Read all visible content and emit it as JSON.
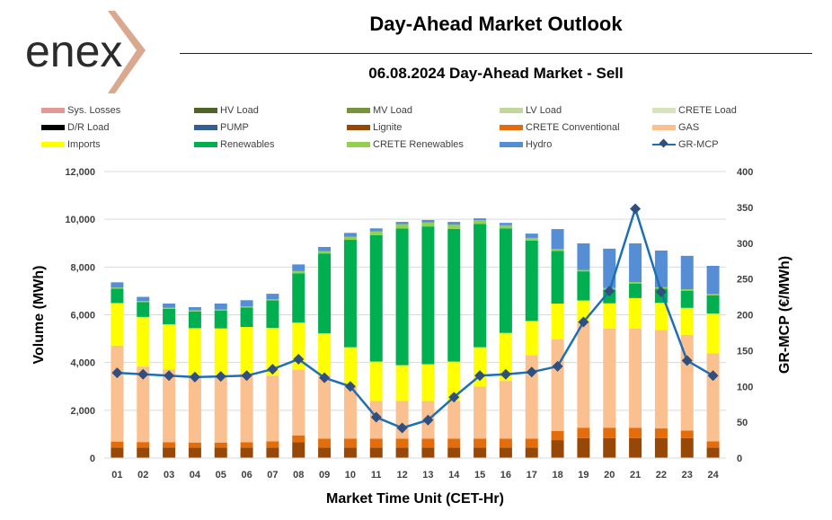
{
  "header": {
    "logo_text": "enex",
    "title": "Day-Ahead Market Outlook",
    "subtitle": "06.08.2024  Day-Ahead Market - Sell"
  },
  "colors": {
    "Sys. Losses": "#e39a96",
    "HV Load": "#4f6228",
    "MV Load": "#77933c",
    "LV Load": "#c3d69b",
    "CRETE Load": "#d7e4bd",
    "D/R Load": "#000000",
    "PUMP": "#365f91",
    "Lignite": "#974806",
    "CRETE Conventional": "#e46c0a",
    "GAS": "#fac090",
    "Imports": "#ffff00",
    "Renewables": "#00b050",
    "CRETE Renewables": "#92d050",
    "Hydro": "#558ed5",
    "GR-MCP": "#1f6fb5",
    "GR-MCP-marker": "#2f4f7f",
    "gridline": "#d9d9d9"
  },
  "chart_data": {
    "type": "bar",
    "stacked": true,
    "title": "06.08.2024  Day-Ahead Market - Sell",
    "xlabel": "Market Time Unit (CET-Hr)",
    "ylabel": "Volume (MWh)",
    "y2label": "GR-MCP (€/MWh)",
    "ylim": [
      0,
      12000
    ],
    "y2lim": [
      0,
      400
    ],
    "yticks": [
      "0",
      "2,000",
      "4,000",
      "6,000",
      "8,000",
      "10,000",
      "12,000"
    ],
    "y2ticks": [
      "0",
      "50",
      "100",
      "150",
      "200",
      "250",
      "300",
      "350",
      "400"
    ],
    "grid": true,
    "legend_position": "top",
    "categories": [
      "01",
      "02",
      "03",
      "04",
      "05",
      "06",
      "07",
      "08",
      "09",
      "10",
      "11",
      "12",
      "13",
      "14",
      "15",
      "16",
      "17",
      "18",
      "19",
      "20",
      "21",
      "22",
      "23",
      "24"
    ],
    "legend": [
      "Sys. Losses",
      "HV Load",
      "MV Load",
      "LV Load",
      "CRETE Load",
      "D/R Load",
      "PUMP",
      "Lignite",
      "CRETE Conventional",
      "GAS",
      "Imports",
      "Renewables",
      "CRETE Renewables",
      "Hydro",
      "GR-MCP"
    ],
    "series": [
      {
        "name": "Sys. Losses",
        "values": [
          0,
          0,
          0,
          0,
          0,
          0,
          0,
          0,
          0,
          0,
          0,
          0,
          0,
          0,
          0,
          0,
          0,
          0,
          0,
          0,
          0,
          0,
          0,
          0
        ]
      },
      {
        "name": "HV Load",
        "values": [
          0,
          0,
          0,
          0,
          0,
          0,
          0,
          0,
          0,
          0,
          0,
          0,
          0,
          0,
          0,
          0,
          0,
          0,
          0,
          0,
          0,
          0,
          0,
          0
        ]
      },
      {
        "name": "MV Load",
        "values": [
          0,
          0,
          0,
          0,
          0,
          0,
          0,
          0,
          0,
          0,
          0,
          0,
          0,
          0,
          0,
          0,
          0,
          0,
          0,
          0,
          0,
          0,
          0,
          0
        ]
      },
      {
        "name": "LV Load",
        "values": [
          0,
          0,
          0,
          0,
          0,
          0,
          0,
          0,
          0,
          0,
          0,
          0,
          0,
          0,
          0,
          0,
          0,
          0,
          0,
          0,
          0,
          0,
          0,
          0
        ]
      },
      {
        "name": "CRETE Load",
        "values": [
          0,
          0,
          0,
          0,
          0,
          0,
          0,
          0,
          0,
          0,
          0,
          0,
          0,
          0,
          0,
          0,
          0,
          0,
          0,
          0,
          0,
          0,
          0,
          0
        ]
      },
      {
        "name": "D/R Load",
        "values": [
          0,
          0,
          0,
          0,
          0,
          0,
          0,
          0,
          0,
          0,
          0,
          0,
          0,
          0,
          0,
          0,
          0,
          0,
          0,
          0,
          0,
          0,
          0,
          0
        ]
      },
      {
        "name": "PUMP",
        "values": [
          0,
          0,
          0,
          0,
          0,
          0,
          0,
          0,
          0,
          0,
          0,
          0,
          0,
          0,
          0,
          0,
          0,
          0,
          0,
          0,
          0,
          0,
          0,
          0
        ]
      },
      {
        "name": "Lignite",
        "values": [
          440,
          440,
          440,
          440,
          440,
          440,
          440,
          660,
          440,
          440,
          440,
          440,
          440,
          440,
          440,
          440,
          440,
          750,
          830,
          830,
          830,
          830,
          830,
          440
        ]
      },
      {
        "name": "CRETE Conventional",
        "values": [
          250,
          230,
          220,
          210,
          210,
          220,
          260,
          290,
          370,
          370,
          370,
          370,
          370,
          370,
          370,
          370,
          370,
          380,
          440,
          440,
          440,
          410,
          320,
          260
        ]
      },
      {
        "name": "GAS",
        "values": [
          4020,
          3160,
          3060,
          2810,
          2800,
          2880,
          2750,
          2750,
          2650,
          2180,
          1580,
          1580,
          1580,
          1580,
          2180,
          2420,
          3500,
          3840,
          4450,
          4150,
          4150,
          4130,
          4010,
          3690
        ]
      },
      {
        "name": "Imports",
        "values": [
          1780,
          2080,
          1880,
          1980,
          1980,
          1950,
          2000,
          1970,
          1760,
          1650,
          1650,
          1500,
          1540,
          1650,
          1650,
          2010,
          1430,
          1500,
          880,
          1060,
          1280,
          1130,
          1130,
          1660
        ]
      },
      {
        "name": "Renewables",
        "values": [
          600,
          620,
          650,
          700,
          740,
          810,
          1150,
          2070,
          3350,
          4500,
          5290,
          5720,
          5770,
          5560,
          5160,
          4380,
          3370,
          2200,
          1220,
          580,
          610,
          590,
          720,
          760
        ]
      },
      {
        "name": "CRETE Renewables",
        "values": [
          50,
          50,
          50,
          50,
          50,
          50,
          50,
          90,
          90,
          130,
          160,
          180,
          170,
          170,
          160,
          130,
          110,
          80,
          60,
          60,
          60,
          60,
          60,
          60
        ]
      },
      {
        "name": "Hydro",
        "values": [
          220,
          170,
          170,
          130,
          250,
          260,
          230,
          280,
          180,
          160,
          130,
          100,
          100,
          120,
          80,
          100,
          180,
          840,
          1110,
          1650,
          1620,
          1540,
          1400,
          1180
        ]
      },
      {
        "name": "GR-MCP",
        "type": "line",
        "axis": "right",
        "values": [
          119,
          117,
          115,
          113,
          114,
          115,
          124,
          138,
          112,
          100,
          57,
          42,
          53,
          85,
          115,
          117,
          120,
          128,
          190,
          233,
          348,
          232,
          136,
          115
        ]
      }
    ]
  }
}
